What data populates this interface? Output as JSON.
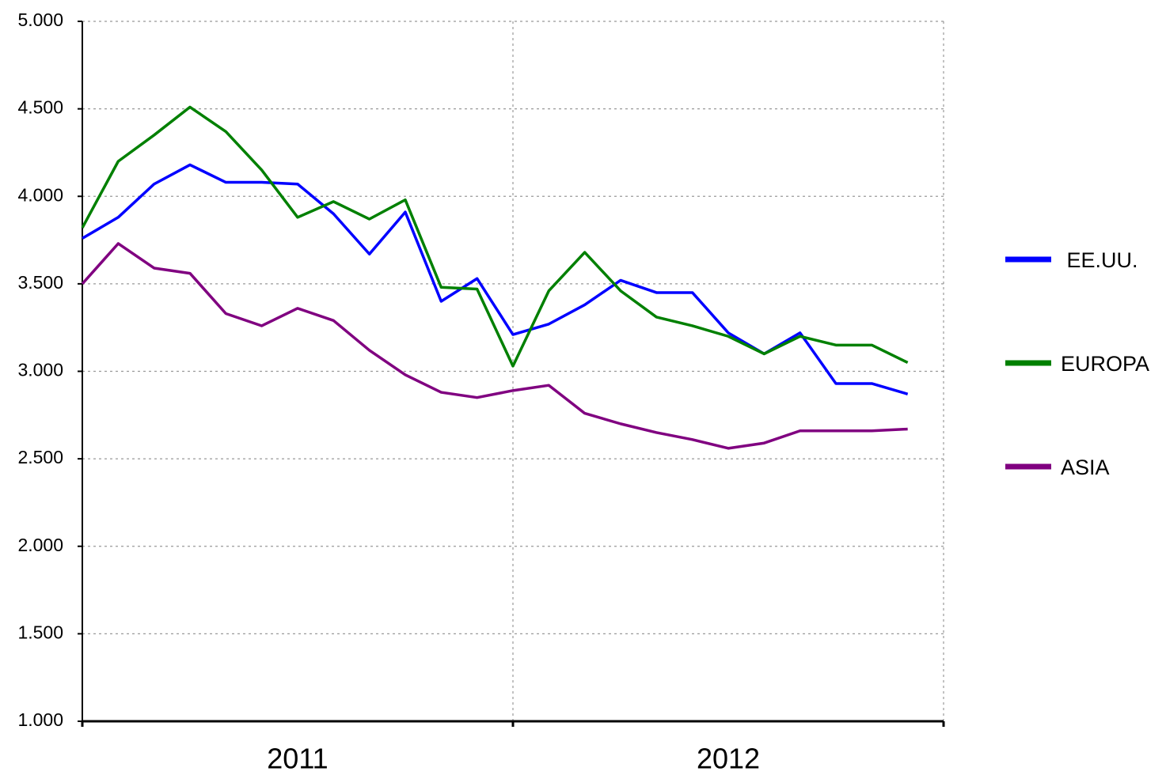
{
  "chart_data": {
    "type": "line",
    "categories": [
      null,
      null,
      null,
      null,
      null,
      null,
      null,
      null,
      null,
      null,
      null,
      null,
      null,
      null,
      null,
      null,
      null,
      null,
      null,
      null,
      null,
      null,
      null,
      null
    ],
    "x_groups": [
      "2011",
      "2012"
    ],
    "series": [
      {
        "name": " EE.UU.",
        "color": "#0000ff",
        "values": [
          3760,
          3880,
          4070,
          4180,
          4080,
          4080,
          4070,
          3900,
          3670,
          3910,
          3400,
          3530,
          3210,
          3270,
          3380,
          3520,
          3450,
          3450,
          3220,
          3100,
          3220,
          2930,
          2930,
          2870
        ]
      },
      {
        "name": "EUROPA",
        "color": "#008000",
        "values": [
          3820,
          4200,
          4350,
          4510,
          4370,
          4150,
          3880,
          3970,
          3870,
          3980,
          3480,
          3470,
          3030,
          3460,
          3680,
          3460,
          3310,
          3260,
          3200,
          3100,
          3200,
          3150,
          3150,
          3050
        ]
      },
      {
        "name": "ASIA",
        "color": "#800080",
        "values": [
          3500,
          3730,
          3590,
          3560,
          3330,
          3260,
          3360,
          3290,
          3120,
          2980,
          2880,
          2850,
          2890,
          2920,
          2760,
          2700,
          2650,
          2610,
          2560,
          2590,
          2660,
          2660,
          2660,
          2670
        ]
      }
    ],
    "ylim": [
      1000,
      5000
    ],
    "yticks": [
      {
        "value": 1000,
        "label": "1.000"
      },
      {
        "value": 1500,
        "label": "1.500"
      },
      {
        "value": 2000,
        "label": "2.000"
      },
      {
        "value": 2500,
        "label": "2.500"
      },
      {
        "value": 3000,
        "label": "3.000"
      },
      {
        "value": 3500,
        "label": "3.500"
      },
      {
        "value": 4000,
        "label": "4.000"
      },
      {
        "value": 4500,
        "label": "4.500"
      },
      {
        "value": 5000,
        "label": "5.000"
      }
    ],
    "grid": true,
    "legend": "right"
  }
}
